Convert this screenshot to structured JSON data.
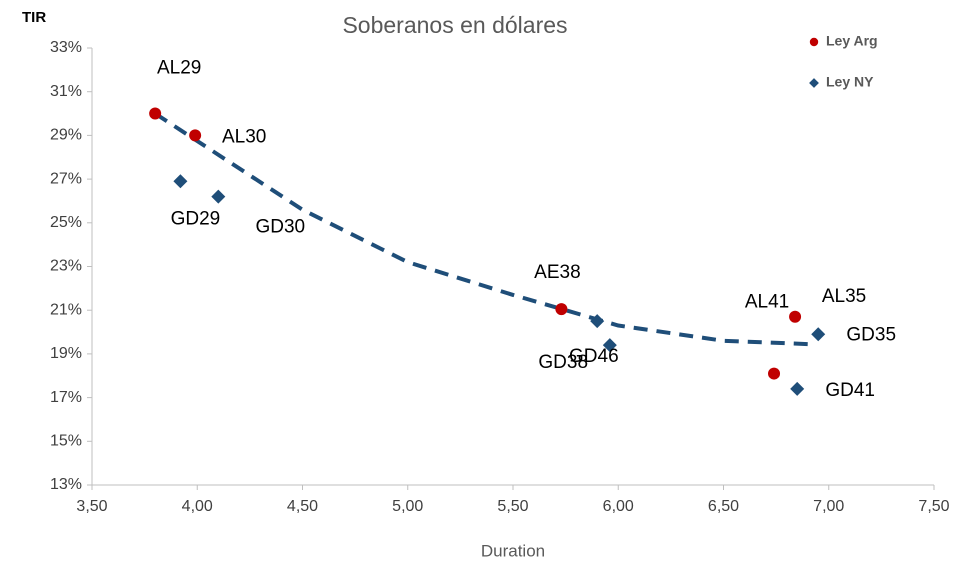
{
  "chart_data": {
    "type": "scatter",
    "title": "Soberanos en dólares",
    "y_label": "TIR",
    "x_label": "Duration",
    "xlim": [
      3.5,
      7.5
    ],
    "ylim": [
      13,
      33
    ],
    "xticks": [
      {
        "value": 3.5,
        "label": "3,50"
      },
      {
        "value": 4,
        "label": "4,00"
      },
      {
        "value": 4.5,
        "label": "4,50"
      },
      {
        "value": 5,
        "label": "5,00"
      },
      {
        "value": 5.5,
        "label": "5,50"
      },
      {
        "value": 6,
        "label": "6,00"
      },
      {
        "value": 6.5,
        "label": "6,50"
      },
      {
        "value": 7,
        "label": "7,00"
      },
      {
        "value": 7.5,
        "label": "7,50"
      }
    ],
    "yticks": [
      {
        "value": 13,
        "label": "13%"
      },
      {
        "value": 15,
        "label": "15%"
      },
      {
        "value": 17,
        "label": "17%"
      },
      {
        "value": 19,
        "label": "19%"
      },
      {
        "value": 21,
        "label": "21%"
      },
      {
        "value": 23,
        "label": "23%"
      },
      {
        "value": 25,
        "label": "25%"
      },
      {
        "value": 27,
        "label": "27%"
      },
      {
        "value": 29,
        "label": "29%"
      },
      {
        "value": 31,
        "label": "31%"
      },
      {
        "value": 33,
        "label": "33%"
      }
    ],
    "grid": false,
    "legend": "top-right",
    "series": [
      {
        "name": "Ley Arg",
        "color": "#c00000",
        "marker": "circle",
        "x": [
          3.8,
          3.99,
          5.73,
          6.74,
          6.84
        ],
        "values": [
          30.0,
          29.0,
          21.05,
          18.1,
          20.7
        ],
        "point_labels": [
          "AL29",
          "AL30",
          "AE38",
          "AL41",
          "AL35"
        ]
      },
      {
        "name": "Ley NY",
        "color": "#1f4e79",
        "marker": "diamond",
        "x": [
          3.92,
          4.1,
          5.9,
          5.96,
          6.85,
          6.95
        ],
        "values": [
          26.9,
          26.2,
          20.5,
          19.4,
          17.4,
          19.9
        ],
        "point_labels": [
          "GD29",
          "GD30",
          "GD38",
          "GD46",
          "GD41",
          "GD35"
        ]
      }
    ],
    "trendline": {
      "color": "#1f4e79",
      "x": [
        3.8,
        4.5,
        5.0,
        5.5,
        6.0,
        6.5,
        6.9
      ],
      "values": [
        30.0,
        25.6,
        23.2,
        21.7,
        20.3,
        19.6,
        19.45
      ]
    }
  }
}
